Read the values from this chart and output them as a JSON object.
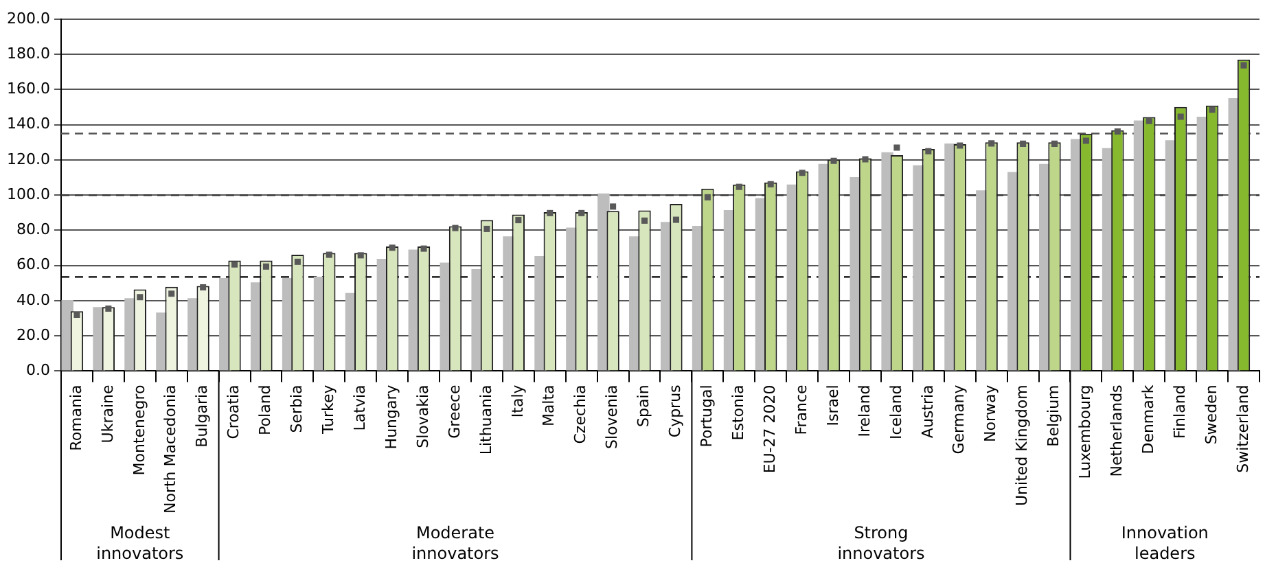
{
  "chart_data": {
    "type": "bar",
    "categories": [
      "Romania",
      "Ukraine",
      "Montenegro",
      "North Macedonia",
      "Bulgaria",
      "Croatia",
      "Poland",
      "Serbia",
      "Turkey",
      "Latvia",
      "Hungary",
      "Slovakia",
      "Greece",
      "Lithuania",
      "Italy",
      "Malta",
      "Czechia",
      "Slovenia",
      "Spain",
      "Cyprus",
      "Portugal",
      "Estonia",
      "EU-27 2020",
      "France",
      "Israel",
      "Ireland",
      "Iceland",
      "Austria",
      "Germany",
      "Norway",
      "United Kingdom",
      "Belgium",
      "Luxembourg",
      "Netherlands",
      "Denmark",
      "Finland",
      "Sweden",
      "Switzerland"
    ],
    "series": [
      {
        "color": "#bdbdbd",
        "values": [
          40.4,
          36.4,
          41.4,
          33.2,
          41.4,
          52.9,
          50.4,
          52.9,
          53.6,
          44.4,
          63.8,
          69.1,
          61.6,
          57.9,
          76.6,
          65.3,
          81.5,
          101,
          76.6,
          84.8,
          82.5,
          91.5,
          98.3,
          106,
          117.7,
          110.2,
          124.4,
          117,
          129.4,
          102.7,
          113.2,
          117.7,
          131.9,
          126.7,
          142.4,
          131.2,
          144.6,
          155.1
        ]
      },
      {
        "colors": [
          "#eef4e0",
          "#eef4e0",
          "#eef4e0",
          "#eef4e0",
          "#eef4e0",
          "#d8e6bd",
          "#d8e6bd",
          "#d8e6bd",
          "#d8e6bd",
          "#d8e6bd",
          "#d8e6bd",
          "#d8e6bd",
          "#d8e6bd",
          "#d8e6bd",
          "#d8e6bd",
          "#d8e6bd",
          "#d8e6bd",
          "#d8e6bd",
          "#d8e6bd",
          "#d8e6bd",
          "#bdd68a",
          "#bdd68a",
          "#bdd68a",
          "#bdd68a",
          "#bdd68a",
          "#bdd68a",
          "#bdd68a",
          "#bdd68a",
          "#bdd68a",
          "#bdd68a",
          "#bdd68a",
          "#bdd68a",
          "#86b92e",
          "#86b92e",
          "#86b92e",
          "#86b92e",
          "#86b92e",
          "#86b92e"
        ],
        "values": [
          34,
          36.4,
          46.4,
          47.9,
          48.4,
          62.8,
          62.8,
          66.1,
          67.1,
          67.1,
          70.8,
          70.8,
          82.3,
          85.8,
          89,
          90.3,
          90.3,
          91,
          91.3,
          95,
          103.7,
          106,
          107.2,
          113.5,
          120.2,
          121,
          122.7,
          126.2,
          129,
          130,
          130,
          130,
          134.9,
          136.9,
          144.4,
          150.1,
          150.9,
          177.1
        ]
      },
      {
        "type": "scatter",
        "color": "#595959",
        "marker": "square",
        "values": [
          32,
          35.5,
          42,
          44,
          47.6,
          60.6,
          59.4,
          62.1,
          66.1,
          65.8,
          70.1,
          69.6,
          81.3,
          80.8,
          85.8,
          89.8,
          89.8,
          93.5,
          85.5,
          86,
          98.8,
          104.7,
          106.2,
          112.7,
          119.5,
          120.4,
          127,
          125,
          128.2,
          129.4,
          129.2,
          129.2,
          130.9,
          136.2,
          142.1,
          144.6,
          148.6,
          173.8
        ]
      }
    ],
    "ylim": [
      0,
      200
    ],
    "yticks": [
      {
        "value": 0,
        "label": "0.0"
      },
      {
        "value": 20,
        "label": "20.0"
      },
      {
        "value": 40,
        "label": "40.0"
      },
      {
        "value": 60,
        "label": "60.0"
      },
      {
        "value": 80,
        "label": "80.0"
      },
      {
        "value": 100,
        "label": "100.0"
      },
      {
        "value": 120,
        "label": "120.0"
      },
      {
        "value": 140,
        "label": "140.0"
      },
      {
        "value": 160,
        "label": "160.0"
      },
      {
        "value": 180,
        "label": "180.0"
      },
      {
        "value": 200,
        "label": "200.0"
      }
    ],
    "grid": "y",
    "ref_lines": [
      {
        "axis": "y",
        "value": 135,
        "color": "#555555",
        "line_style": "dashed"
      },
      {
        "axis": "y",
        "value": 100,
        "color": "#333333",
        "line_style": "dashed"
      },
      {
        "axis": "y",
        "value": 53.5,
        "color": "#000000",
        "line_style": "dashed"
      }
    ],
    "annotations": [
      "Modest innovators",
      "Moderate innovators",
      "Strong innovators",
      "Innovation leaders"
    ]
  }
}
